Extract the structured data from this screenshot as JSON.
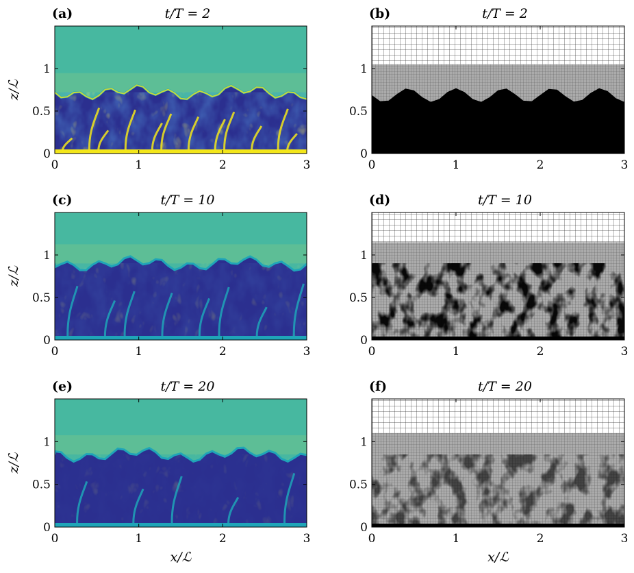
{
  "figure": {
    "panels": [
      {
        "label": "(a)",
        "title": "t/T = 2",
        "kind": "field",
        "interface_z": 0.72,
        "dark_fill": 0.35
      },
      {
        "label": "(b)",
        "title": "t/T = 2",
        "kind": "mesh",
        "interface_z": 0.72,
        "refined_top": 1.05
      },
      {
        "label": "(c)",
        "title": "t/T = 10",
        "kind": "field",
        "interface_z": 0.9,
        "dark_fill": 0.8
      },
      {
        "label": "(d)",
        "title": "t/T = 10",
        "kind": "mesh",
        "interface_z": 0.9,
        "refined_top": 1.15
      },
      {
        "label": "(e)",
        "title": "t/T = 20",
        "kind": "field",
        "interface_z": 0.85,
        "dark_fill": 0.95
      },
      {
        "label": "(f)",
        "title": "t/T = 20",
        "kind": "mesh",
        "interface_z": 0.85,
        "refined_top": 1.1
      }
    ],
    "x_ticks": [
      "0",
      "1",
      "2",
      "3"
    ],
    "x_tick_values": [
      0,
      1,
      2,
      3
    ],
    "z_ticks": [
      "0",
      "0.5",
      "1"
    ],
    "z_tick_values": [
      0,
      0.5,
      1
    ],
    "x_range": [
      0,
      3
    ],
    "z_range": [
      0,
      1.5
    ],
    "xlabel": "x/ℒ",
    "zlabel": "z/ℒ",
    "colormap": {
      "low": "#2b2f8f",
      "mid": "#1fa5b8",
      "high": "#f3e61a",
      "background": "#47b8a0"
    }
  }
}
